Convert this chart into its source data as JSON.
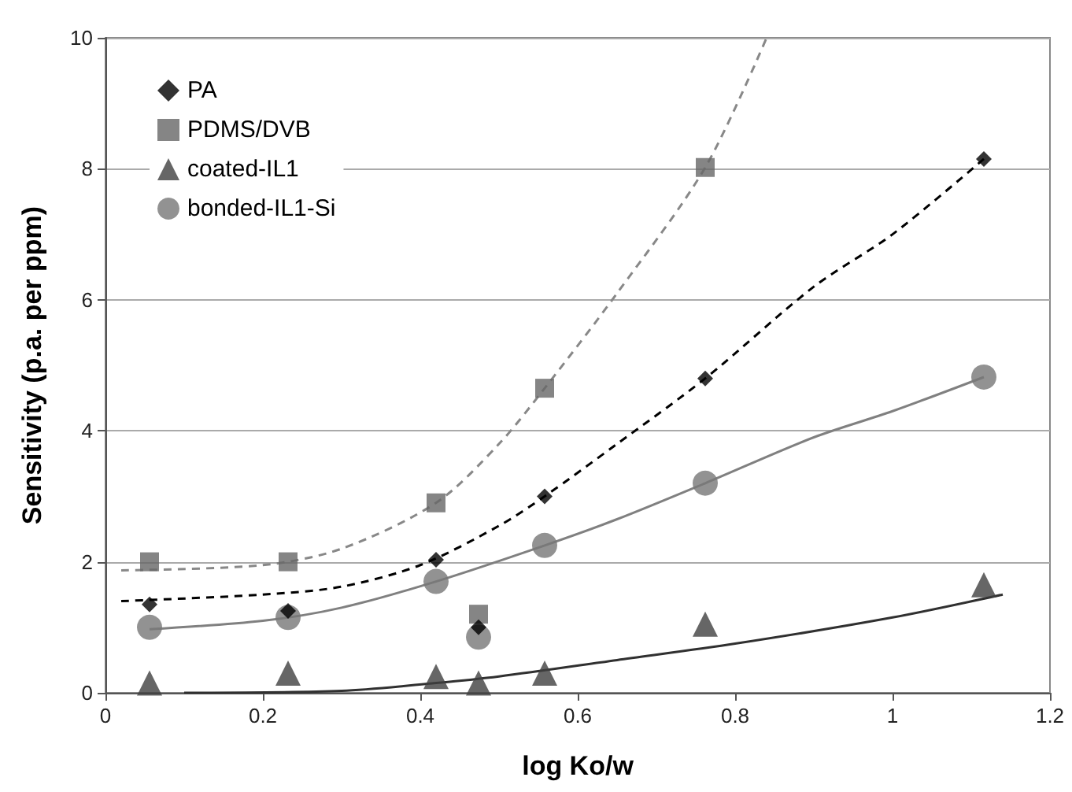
{
  "chart_data": {
    "type": "scatter",
    "xlabel": "log Ko/w",
    "ylabel": "Sensitivity (p.a. per ppm)",
    "xlim": [
      0,
      1.2
    ],
    "xticks": [
      0,
      0.2,
      0.4,
      0.6,
      0.8,
      1,
      1.2
    ],
    "ylim": [
      0,
      10
    ],
    "yticks": [
      0,
      2,
      4,
      6,
      8,
      10
    ],
    "grid": "y",
    "legend": "top left",
    "series": [
      {
        "name": "PA",
        "color": "#000000",
        "marker": "diamond",
        "x": [
          0.056,
          0.232,
          0.42,
          0.474,
          0.558,
          0.762,
          1.116
        ],
        "values": [
          1.35,
          1.25,
          2.03,
          1.0,
          3.0,
          4.8,
          8.15
        ]
      },
      {
        "name": "PDMS/DVB",
        "color": "#666666",
        "marker": "square",
        "x": [
          0.056,
          0.232,
          0.42,
          0.474,
          0.558,
          0.762
        ],
        "values": [
          2.0,
          2.0,
          2.9,
          1.2,
          4.65,
          8.02
        ]
      },
      {
        "name": "coated-IL1",
        "color": "#404040",
        "marker": "triangle",
        "x": [
          0.056,
          0.232,
          0.42,
          0.474,
          0.558,
          0.762,
          1.116
        ],
        "values": [
          0.15,
          0.3,
          0.25,
          0.15,
          0.3,
          1.05,
          1.65
        ]
      },
      {
        "name": "bonded-IL1-Si",
        "color": "#777777",
        "marker": "circle",
        "x": [
          0.056,
          0.232,
          0.42,
          0.474,
          0.558,
          0.762,
          1.116
        ],
        "values": [
          1.0,
          1.15,
          1.7,
          0.85,
          2.25,
          3.2,
          4.82
        ]
      },
      {
        "type": "line",
        "color": "#000000",
        "line_style": "dashed",
        "marker": "none",
        "x": [
          0.02,
          0.2,
          0.3,
          0.4,
          0.5,
          0.558,
          0.65,
          0.762,
          0.9,
          1.0,
          1.116
        ],
        "values": [
          1.4,
          1.5,
          1.62,
          1.95,
          2.55,
          3.0,
          3.8,
          4.8,
          6.2,
          7.0,
          8.15
        ]
      },
      {
        "type": "line",
        "color": "#888888",
        "line_style": "dashed",
        "marker": "none",
        "x": [
          0.02,
          0.2,
          0.3,
          0.42,
          0.5,
          0.558,
          0.65,
          0.762,
          0.84
        ],
        "values": [
          1.87,
          1.95,
          2.2,
          2.9,
          3.8,
          4.65,
          6.1,
          8.02,
          10
        ]
      },
      {
        "type": "line",
        "color": "#808080",
        "line_style": "solid",
        "marker": "none",
        "x": [
          0.056,
          0.2,
          0.3,
          0.42,
          0.558,
          0.65,
          0.762,
          0.9,
          1.0,
          1.116
        ],
        "values": [
          0.97,
          1.1,
          1.3,
          1.7,
          2.25,
          2.65,
          3.2,
          3.9,
          4.3,
          4.82
        ]
      },
      {
        "type": "line",
        "color": "#303030",
        "line_style": "solid",
        "marker": "none",
        "x": [
          0.1,
          0.3,
          0.42,
          0.5,
          0.65,
          0.8,
          1.0,
          1.14
        ],
        "values": [
          0,
          0.03,
          0.15,
          0.25,
          0.5,
          0.75,
          1.15,
          1.5
        ]
      }
    ]
  }
}
